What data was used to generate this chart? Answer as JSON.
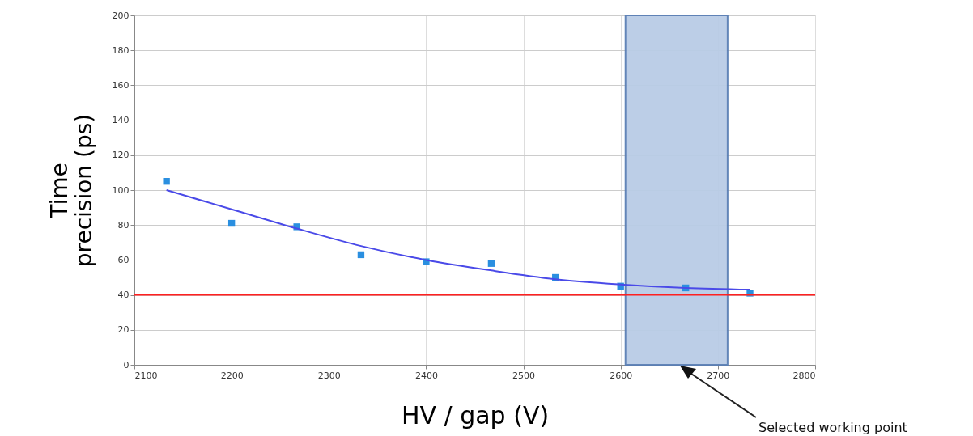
{
  "chart_data": {
    "type": "scatter",
    "xlabel": "HV / gap (V)",
    "ylabel": "Time precision (ps)",
    "xlim": [
      2100,
      2800
    ],
    "xticks": [
      2100,
      2200,
      2300,
      2400,
      2500,
      2600,
      2700,
      2800
    ],
    "ylim": [
      0,
      200
    ],
    "yticks": [
      0,
      20,
      40,
      60,
      80,
      100,
      120,
      140,
      160,
      180,
      200
    ],
    "grid": true,
    "series": [
      {
        "marker": "square",
        "color": "#2a8fe0",
        "x": [
          2133,
          2200,
          2267,
          2333,
          2400,
          2467,
          2533,
          2600,
          2667,
          2733
        ],
        "values": [
          105,
          81,
          79,
          63,
          59,
          58,
          50,
          45,
          44,
          41
        ]
      },
      {
        "type": "line",
        "color": "#4a4ae8",
        "x": [
          2133,
          2200,
          2267,
          2333,
          2400,
          2467,
          2533,
          2600,
          2667,
          2733
        ],
        "values": [
          100,
          89,
          78,
          68,
          60,
          54,
          49,
          46,
          44,
          43
        ]
      }
    ],
    "ref_lines": [
      {
        "axis": "y",
        "value": 40,
        "color": "#ff2020"
      }
    ],
    "bands": [
      {
        "axis": "x",
        "from": 2605,
        "to": 2710,
        "color": "#b9cce6"
      }
    ],
    "annotations": [
      "Selected working point"
    ]
  }
}
